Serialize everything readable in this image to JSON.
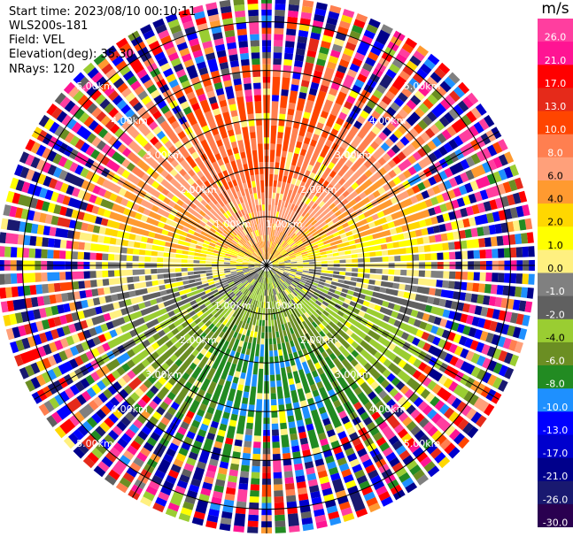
{
  "header": {
    "start_time": "Start time: 2023/08/10 00:10:11",
    "instrument": "WLS200s-181",
    "field": "Field: VEL",
    "elevation": "Elevation(deg): 35.30",
    "nrays": "NRays: 120"
  },
  "colorbar": {
    "unit": "m/s",
    "ticks": [
      "26.0",
      "21.0",
      "17.0",
      "13.0",
      "10.0",
      "8.0",
      "6.0",
      "4.0",
      "2.0",
      "1.0",
      "0.0",
      "-1.0",
      "-2.0",
      "-4.0",
      "-6.0",
      "-8.0",
      "-10.0",
      "-13.0",
      "-17.0",
      "-21.0",
      "-26.0",
      "-30.0"
    ],
    "colors": [
      "#ff3e9f",
      "#ff1493",
      "#ff0000",
      "#e52a1a",
      "#ff4500",
      "#ff7f50",
      "#ffa07a",
      "#ff9a30",
      "#ffd700",
      "#ffff00",
      "#fff080",
      "#808080",
      "#606060",
      "#9acd32",
      "#6b8e23",
      "#228b22",
      "#1e90ff",
      "#0000ff",
      "#0000cd",
      "#00008b",
      "#191970",
      "#2a0050"
    ]
  },
  "chart_data": {
    "type": "ppi",
    "title": "Field: VEL",
    "field": "VEL",
    "units": "m/s",
    "elevation_deg": 35.3,
    "n_rays": 120,
    "value_range": [
      -30,
      26
    ],
    "max_range_km": 5.5,
    "range_rings": [
      {
        "range_km": 1.0,
        "label": "1.00km"
      },
      {
        "range_km": 2.0,
        "label": "2.00km"
      },
      {
        "range_km": 3.0,
        "label": "3.00km"
      },
      {
        "range_km": 4.0,
        "label": "4.00km"
      },
      {
        "range_km": 5.0,
        "label": "5.00km"
      }
    ],
    "spokes_deg": [
      0,
      30,
      60,
      90,
      120,
      150,
      180,
      210,
      240,
      270,
      300,
      330
    ],
    "pattern": {
      "clean_range_km": 3.3,
      "positive_azimuth_deg": 0,
      "negative_azimuth_deg": 180,
      "peak_speed_ms": 9,
      "dc_offset_ms": -0.5,
      "noise_beyond_km": 3.3
    }
  }
}
